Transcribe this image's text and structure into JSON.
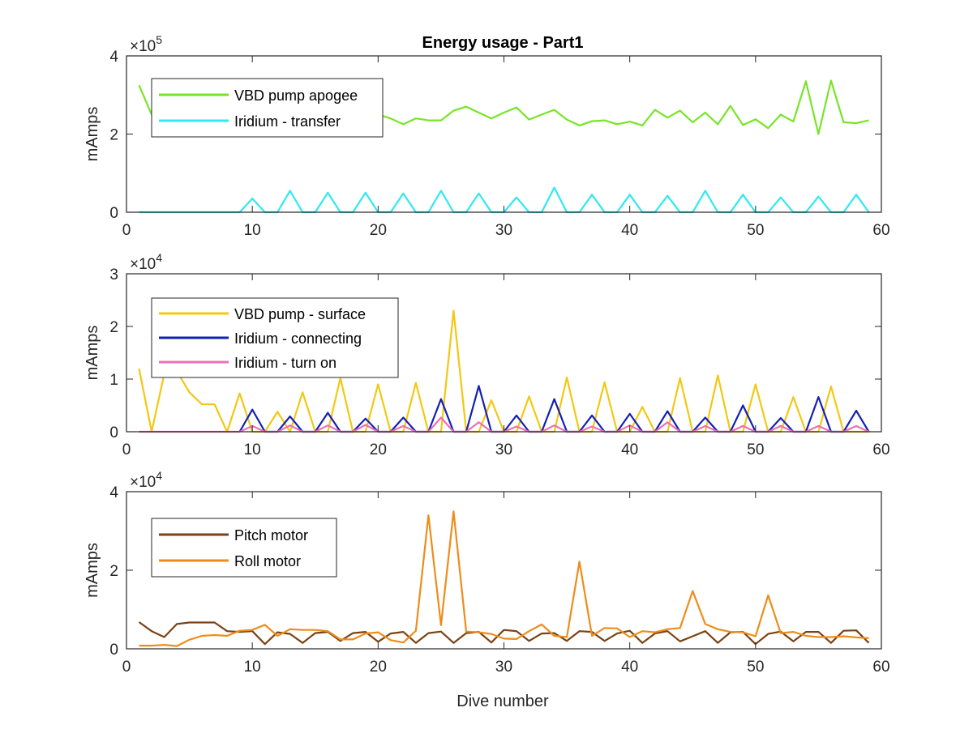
{
  "figure": {
    "title": "Energy usage - Part1",
    "xlabel": "Dive number"
  },
  "chart_data": [
    {
      "type": "line",
      "title": "Energy usage - Part1",
      "xlabel": "",
      "ylabel": "mAmps",
      "xlim": [
        0,
        60
      ],
      "ylim": [
        0,
        400000
      ],
      "x_ticks": [
        0,
        10,
        20,
        30,
        40,
        50,
        60
      ],
      "x_tick_labels": [
        "0",
        "10",
        "20",
        "30",
        "40",
        "50",
        "60"
      ],
      "y_ticks": [
        0,
        200000,
        400000
      ],
      "y_tick_labels": [
        "0",
        "2",
        "4"
      ],
      "y_exponent_base": "×10",
      "y_exponent": "5",
      "legend_position": "top-left",
      "grid": false,
      "series": [
        {
          "name": "VBD pump apogee",
          "color": "#77e526",
          "x": [
            1,
            2,
            3,
            4,
            5,
            6,
            7,
            8,
            9,
            10,
            11,
            12,
            13,
            14,
            15,
            16,
            17,
            18,
            19,
            20,
            21,
            22,
            23,
            24,
            25,
            26,
            27,
            28,
            29,
            30,
            31,
            32,
            33,
            34,
            35,
            36,
            37,
            38,
            39,
            40,
            41,
            42,
            43,
            44,
            45,
            46,
            47,
            48,
            49,
            50,
            51,
            52,
            53,
            54,
            55,
            56,
            57,
            58,
            59
          ],
          "y": [
            325000,
            250000,
            240000,
            250000,
            245000,
            240000,
            250000,
            245000,
            245000,
            250000,
            245000,
            250000,
            240000,
            245000,
            250000,
            245000,
            240000,
            250000,
            245000,
            250000,
            240000,
            225000,
            240000,
            235000,
            235000,
            260000,
            270000,
            255000,
            240000,
            255000,
            268000,
            237000,
            250000,
            262000,
            237000,
            222000,
            233000,
            235000,
            225000,
            232000,
            222000,
            262000,
            242000,
            260000,
            230000,
            255000,
            225000,
            272000,
            223000,
            238000,
            215000,
            250000,
            232000,
            335000,
            200000,
            337000,
            230000,
            228000,
            235000
          ]
        },
        {
          "name": "Iridium - transfer",
          "color": "#2ee9f2",
          "x": [
            1,
            2,
            3,
            4,
            5,
            6,
            7,
            8,
            9,
            10,
            11,
            12,
            13,
            14,
            15,
            16,
            17,
            18,
            19,
            20,
            21,
            22,
            23,
            24,
            25,
            26,
            27,
            28,
            29,
            30,
            31,
            32,
            33,
            34,
            35,
            36,
            37,
            38,
            39,
            40,
            41,
            42,
            43,
            44,
            45,
            46,
            47,
            48,
            49,
            50,
            51,
            52,
            53,
            54,
            55,
            56,
            57,
            58,
            59
          ],
          "y": [
            0,
            0,
            0,
            0,
            0,
            0,
            0,
            0,
            0,
            35000,
            0,
            0,
            55000,
            0,
            0,
            50000,
            0,
            0,
            50000,
            0,
            0,
            48000,
            0,
            0,
            55000,
            0,
            0,
            48000,
            0,
            0,
            38000,
            0,
            0,
            63000,
            0,
            0,
            45000,
            0,
            0,
            45000,
            0,
            0,
            42000,
            0,
            0,
            55000,
            0,
            0,
            45000,
            0,
            0,
            38000,
            0,
            0,
            40000,
            0,
            0,
            45000,
            0
          ]
        }
      ]
    },
    {
      "type": "line",
      "title": "",
      "xlabel": "",
      "ylabel": "mAmps",
      "xlim": [
        0,
        60
      ],
      "ylim": [
        0,
        30000
      ],
      "x_ticks": [
        0,
        10,
        20,
        30,
        40,
        50,
        60
      ],
      "x_tick_labels": [
        "0",
        "10",
        "20",
        "30",
        "40",
        "50",
        "60"
      ],
      "y_ticks": [
        0,
        10000,
        20000,
        30000
      ],
      "y_tick_labels": [
        "0",
        "1",
        "2",
        "3"
      ],
      "y_exponent_base": "×10",
      "y_exponent": "4",
      "legend_position": "top-left",
      "grid": false,
      "series": [
        {
          "name": "VBD pump - surface",
          "color": "#f2c812",
          "x": [
            1,
            2,
            3,
            4,
            5,
            6,
            7,
            8,
            9,
            10,
            11,
            12,
            13,
            14,
            15,
            16,
            17,
            18,
            19,
            20,
            21,
            22,
            23,
            24,
            25,
            26,
            27,
            28,
            29,
            30,
            31,
            32,
            33,
            34,
            35,
            36,
            37,
            38,
            39,
            40,
            41,
            42,
            43,
            44,
            45,
            46,
            47,
            48,
            49,
            50,
            51,
            52,
            53,
            54,
            55,
            56,
            57,
            58,
            59
          ],
          "y": [
            12000,
            0,
            11000,
            11500,
            7500,
            5200,
            5200,
            0,
            7300,
            0,
            0,
            3800,
            0,
            7500,
            0,
            0,
            10200,
            0,
            0,
            9000,
            0,
            0,
            9300,
            0,
            0,
            23000,
            0,
            0,
            6000,
            0,
            0,
            6700,
            0,
            0,
            10300,
            0,
            0,
            9400,
            0,
            0,
            4700,
            0,
            0,
            10200,
            0,
            0,
            10700,
            0,
            0,
            9000,
            0,
            0,
            6600,
            0,
            0,
            8600,
            0,
            0,
            0
          ]
        },
        {
          "name": "Iridium - connecting",
          "color": "#1420b4",
          "x": [
            9,
            10,
            11,
            12,
            13,
            14,
            15,
            16,
            17,
            18,
            19,
            20,
            21,
            22,
            23,
            24,
            25,
            26,
            27,
            28,
            29,
            30,
            31,
            32,
            33,
            34,
            35,
            36,
            37,
            38,
            39,
            40,
            41,
            42,
            43,
            44,
            45,
            46,
            47,
            48,
            49,
            50,
            51,
            52,
            53,
            54,
            55,
            56,
            57,
            58,
            59
          ],
          "y": [
            0,
            4200,
            0,
            0,
            2900,
            0,
            0,
            3600,
            0,
            0,
            2500,
            0,
            0,
            2700,
            0,
            0,
            6200,
            0,
            0,
            8700,
            0,
            0,
            3100,
            0,
            0,
            6200,
            0,
            0,
            3100,
            0,
            0,
            3400,
            0,
            0,
            3900,
            0,
            0,
            2700,
            0,
            0,
            5000,
            0,
            0,
            2600,
            0,
            0,
            6600,
            0,
            0,
            4000,
            0
          ]
        },
        {
          "name": "Iridium - turn on",
          "color": "#ec6fb7",
          "x": [
            1,
            2,
            3,
            4,
            5,
            6,
            7,
            8,
            9,
            10,
            11,
            12,
            13,
            14,
            15,
            16,
            17,
            18,
            19,
            20,
            21,
            22,
            23,
            24,
            25,
            26,
            27,
            28,
            29,
            30,
            31,
            32,
            33,
            34,
            35,
            36,
            37,
            38,
            39,
            40,
            41,
            42,
            43,
            44,
            45,
            46,
            47,
            48,
            49,
            50,
            51,
            52,
            53,
            54,
            55,
            56,
            57,
            58,
            59
          ],
          "y": [
            0,
            0,
            0,
            0,
            0,
            0,
            0,
            0,
            0,
            1100,
            0,
            0,
            1200,
            0,
            0,
            1200,
            0,
            0,
            1300,
            0,
            0,
            1100,
            0,
            0,
            2700,
            0,
            0,
            1800,
            0,
            0,
            1000,
            0,
            0,
            1200,
            0,
            0,
            1000,
            0,
            0,
            1200,
            0,
            0,
            1800,
            0,
            0,
            1100,
            0,
            0,
            1100,
            0,
            0,
            1100,
            0,
            0,
            1100,
            0,
            0,
            1100,
            0
          ]
        }
      ]
    },
    {
      "type": "line",
      "title": "",
      "xlabel": "Dive number",
      "ylabel": "mAmps",
      "xlim": [
        0,
        60
      ],
      "ylim": [
        0,
        40000
      ],
      "x_ticks": [
        0,
        10,
        20,
        30,
        40,
        50,
        60
      ],
      "x_tick_labels": [
        "0",
        "10",
        "20",
        "30",
        "40",
        "50",
        "60"
      ],
      "y_ticks": [
        0,
        20000,
        40000
      ],
      "y_tick_labels": [
        "0",
        "2",
        "4"
      ],
      "y_exponent_base": "×10",
      "y_exponent": "4",
      "legend_position": "top-left",
      "grid": false,
      "series": [
        {
          "name": "Pitch motor",
          "color": "#7a4315",
          "x": [
            1,
            2,
            3,
            4,
            5,
            6,
            7,
            8,
            9,
            10,
            11,
            12,
            13,
            14,
            15,
            16,
            17,
            18,
            19,
            20,
            21,
            22,
            23,
            24,
            25,
            26,
            27,
            28,
            29,
            30,
            31,
            32,
            33,
            34,
            35,
            36,
            37,
            38,
            39,
            40,
            41,
            42,
            43,
            44,
            45,
            46,
            47,
            48,
            49,
            50,
            51,
            52,
            53,
            54,
            55,
            56,
            57,
            58,
            59
          ],
          "y": [
            6800,
            4500,
            3000,
            6300,
            6700,
            6700,
            6700,
            4500,
            4300,
            4500,
            1200,
            4200,
            3800,
            1500,
            4000,
            4300,
            2000,
            4000,
            4300,
            1800,
            3900,
            4300,
            1500,
            4000,
            4400,
            1500,
            4000,
            4300,
            1600,
            4800,
            4500,
            2000,
            3900,
            4000,
            2000,
            4500,
            4300,
            2000,
            3900,
            4600,
            1500,
            3900,
            4500,
            1900,
            3200,
            4500,
            1500,
            4200,
            4300,
            1200,
            3800,
            4400,
            1900,
            4300,
            4300,
            1500,
            4600,
            4700,
            1500
          ]
        },
        {
          "name": "Roll motor",
          "color": "#ee8c1a",
          "x": [
            1,
            2,
            3,
            4,
            5,
            6,
            7,
            8,
            9,
            10,
            11,
            12,
            13,
            14,
            15,
            16,
            17,
            18,
            19,
            20,
            21,
            22,
            23,
            24,
            25,
            26,
            27,
            28,
            29,
            30,
            31,
            32,
            33,
            34,
            35,
            36,
            37,
            38,
            39,
            40,
            41,
            42,
            43,
            44,
            45,
            46,
            47,
            48,
            49,
            50,
            51,
            52,
            53,
            54,
            55,
            56,
            57,
            58,
            59
          ],
          "y": [
            800,
            800,
            1000,
            700,
            2300,
            3300,
            3500,
            3300,
            4600,
            4800,
            6100,
            3300,
            5000,
            4800,
            4800,
            4500,
            2400,
            2400,
            3900,
            4200,
            2200,
            1600,
            4600,
            34000,
            6000,
            35000,
            4400,
            4200,
            3800,
            2600,
            2500,
            4500,
            6200,
            3300,
            3000,
            22200,
            3300,
            5300,
            5200,
            3000,
            4500,
            4200,
            5000,
            5300,
            14700,
            6300,
            5000,
            4300,
            4200,
            3200,
            13600,
            4000,
            4300,
            3300,
            3000,
            3000,
            3200,
            2900,
            2700
          ]
        }
      ]
    }
  ]
}
